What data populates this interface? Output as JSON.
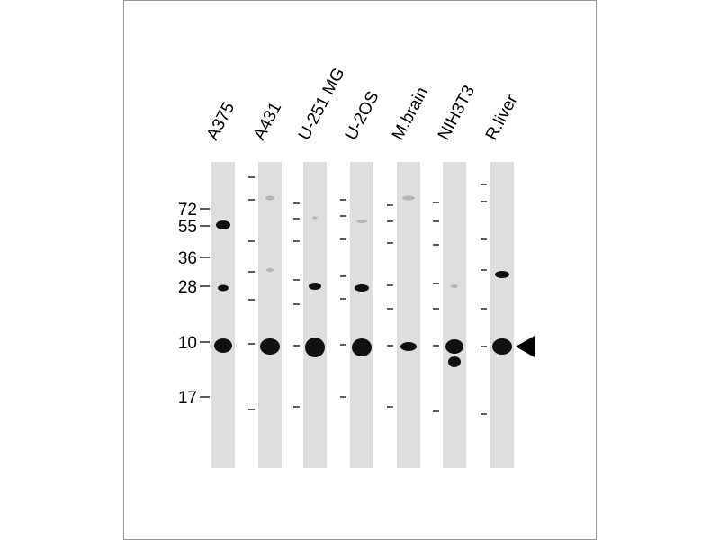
{
  "lanes": [
    "A375",
    "A431",
    "U-251 MG",
    "U-2OS",
    "M.brain",
    "NIH3T3",
    "R.liver"
  ],
  "markers": [
    "72",
    "55",
    "36",
    "28",
    "10",
    "17"
  ]
}
